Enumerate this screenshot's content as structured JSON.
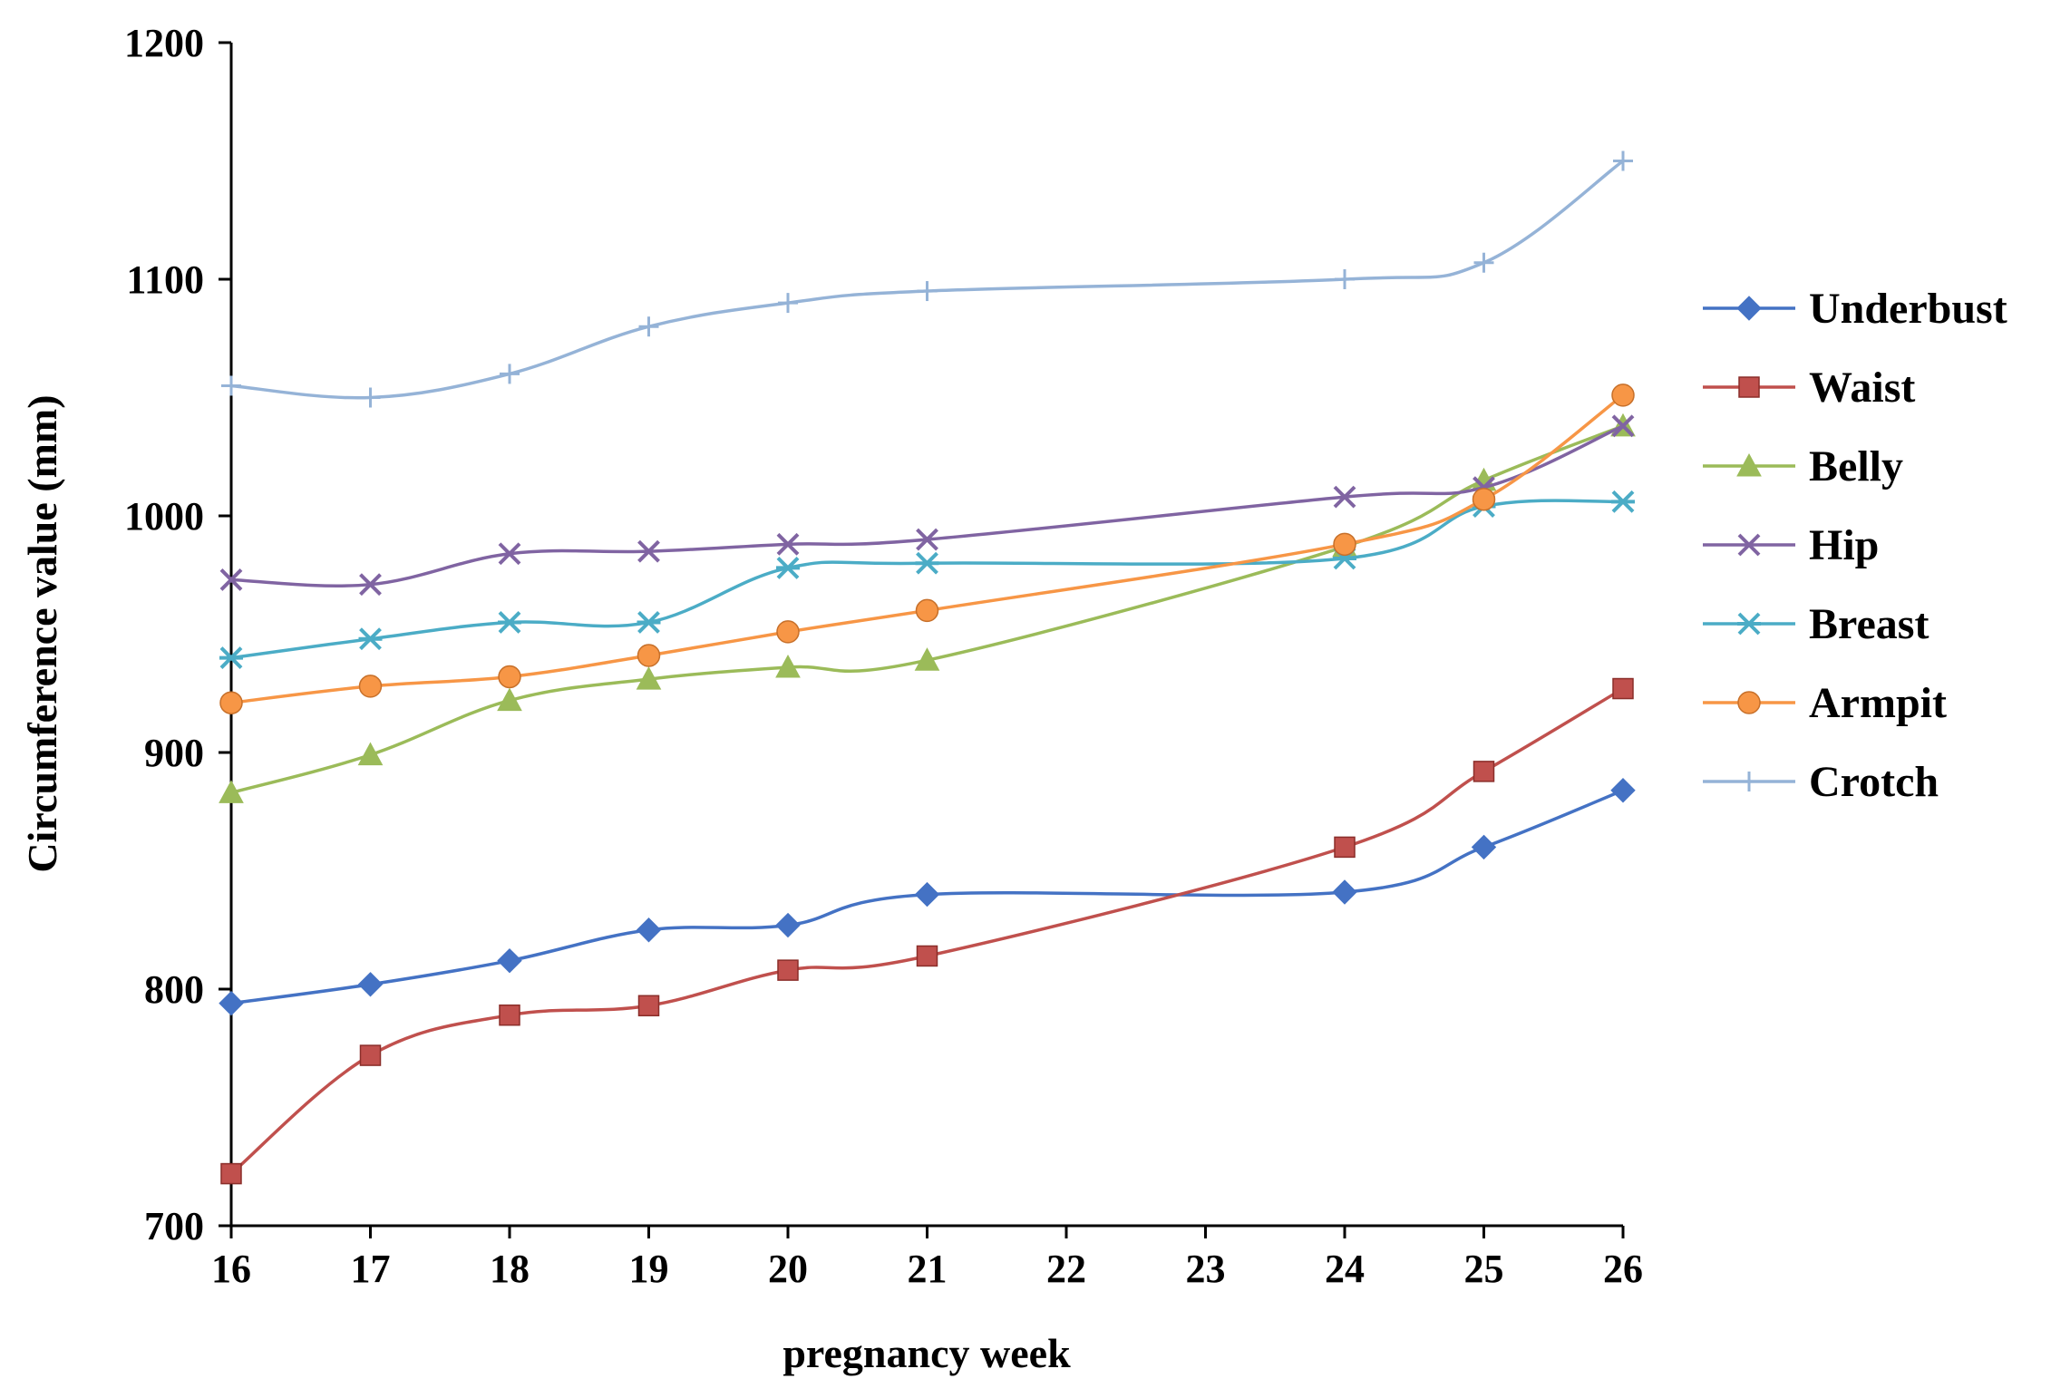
{
  "chart_data": {
    "type": "line",
    "title": "",
    "xlabel": "pregnancy week",
    "ylabel": "Circumference value (mm)",
    "xlim": [
      16,
      26
    ],
    "ylim": [
      700,
      1200
    ],
    "x_ticks": [
      16,
      17,
      18,
      19,
      20,
      21,
      22,
      23,
      24,
      25,
      26
    ],
    "y_ticks": [
      700,
      800,
      900,
      1000,
      1100,
      1200
    ],
    "grid": false,
    "legend_position": "right",
    "x": [
      16,
      17,
      18,
      19,
      20,
      21,
      24,
      25,
      26
    ],
    "series": [
      {
        "name": "Underbust",
        "color": "#4472c4",
        "marker": "diamond",
        "values": [
          794,
          802,
          812,
          825,
          827,
          840,
          841,
          860,
          884
        ]
      },
      {
        "name": "Waist",
        "color": "#c0504d",
        "marker": "square",
        "values": [
          722,
          772,
          789,
          793,
          808,
          814,
          860,
          892,
          927
        ]
      },
      {
        "name": "Belly",
        "color": "#9bbb59",
        "marker": "triangle",
        "values": [
          883,
          899,
          922,
          931,
          936,
          939,
          987,
          1015,
          1038
        ]
      },
      {
        "name": "Hip",
        "color": "#8064a2",
        "marker": "x",
        "values": [
          973,
          971,
          984,
          985,
          988,
          990,
          1008,
          1012,
          1038
        ]
      },
      {
        "name": "Breast",
        "color": "#4bacc6",
        "marker": "star",
        "values": [
          940,
          948,
          955,
          955,
          978,
          980,
          982,
          1004,
          1006
        ]
      },
      {
        "name": "Armpit",
        "color": "#f79646",
        "marker": "circle",
        "values": [
          921,
          928,
          932,
          941,
          951,
          960,
          988,
          1007,
          1051
        ]
      },
      {
        "name": "Crotch",
        "color": "#95b3d7",
        "marker": "plus",
        "values": [
          1055,
          1050,
          1060,
          1080,
          1090,
          1095,
          1100,
          1107,
          1150
        ]
      }
    ]
  }
}
